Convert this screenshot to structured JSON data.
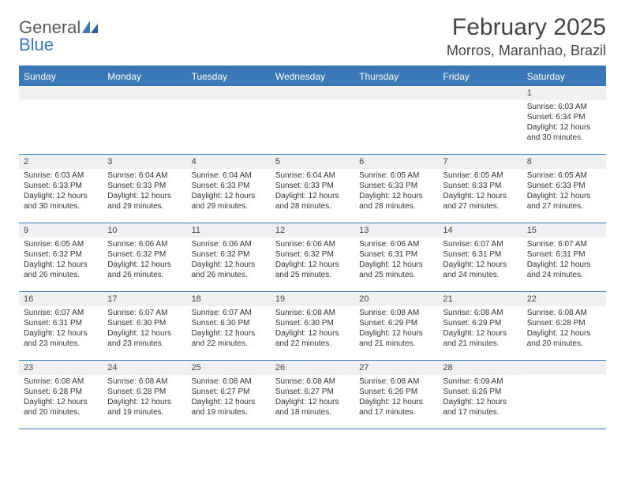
{
  "logo": {
    "word1": "General",
    "word2": "Blue"
  },
  "title": "February 2025",
  "location": "Morros, Maranhao, Brazil",
  "colors": {
    "accent": "#3b78b8",
    "daynum_bg": "#eef0f2",
    "text": "#333333",
    "header_text": "#444444"
  },
  "weekdays": [
    "Sunday",
    "Monday",
    "Tuesday",
    "Wednesday",
    "Thursday",
    "Friday",
    "Saturday"
  ],
  "weeks": [
    [
      {
        "n": "",
        "sr": "",
        "ss": "",
        "dl": ""
      },
      {
        "n": "",
        "sr": "",
        "ss": "",
        "dl": ""
      },
      {
        "n": "",
        "sr": "",
        "ss": "",
        "dl": ""
      },
      {
        "n": "",
        "sr": "",
        "ss": "",
        "dl": ""
      },
      {
        "n": "",
        "sr": "",
        "ss": "",
        "dl": ""
      },
      {
        "n": "",
        "sr": "",
        "ss": "",
        "dl": ""
      },
      {
        "n": "1",
        "sr": "Sunrise: 6:03 AM",
        "ss": "Sunset: 6:34 PM",
        "dl": "Daylight: 12 hours and 30 minutes."
      }
    ],
    [
      {
        "n": "2",
        "sr": "Sunrise: 6:03 AM",
        "ss": "Sunset: 6:33 PM",
        "dl": "Daylight: 12 hours and 30 minutes."
      },
      {
        "n": "3",
        "sr": "Sunrise: 6:04 AM",
        "ss": "Sunset: 6:33 PM",
        "dl": "Daylight: 12 hours and 29 minutes."
      },
      {
        "n": "4",
        "sr": "Sunrise: 6:04 AM",
        "ss": "Sunset: 6:33 PM",
        "dl": "Daylight: 12 hours and 29 minutes."
      },
      {
        "n": "5",
        "sr": "Sunrise: 6:04 AM",
        "ss": "Sunset: 6:33 PM",
        "dl": "Daylight: 12 hours and 28 minutes."
      },
      {
        "n": "6",
        "sr": "Sunrise: 6:05 AM",
        "ss": "Sunset: 6:33 PM",
        "dl": "Daylight: 12 hours and 28 minutes."
      },
      {
        "n": "7",
        "sr": "Sunrise: 6:05 AM",
        "ss": "Sunset: 6:33 PM",
        "dl": "Daylight: 12 hours and 27 minutes."
      },
      {
        "n": "8",
        "sr": "Sunrise: 6:05 AM",
        "ss": "Sunset: 6:33 PM",
        "dl": "Daylight: 12 hours and 27 minutes."
      }
    ],
    [
      {
        "n": "9",
        "sr": "Sunrise: 6:05 AM",
        "ss": "Sunset: 6:32 PM",
        "dl": "Daylight: 12 hours and 26 minutes."
      },
      {
        "n": "10",
        "sr": "Sunrise: 6:06 AM",
        "ss": "Sunset: 6:32 PM",
        "dl": "Daylight: 12 hours and 26 minutes."
      },
      {
        "n": "11",
        "sr": "Sunrise: 6:06 AM",
        "ss": "Sunset: 6:32 PM",
        "dl": "Daylight: 12 hours and 26 minutes."
      },
      {
        "n": "12",
        "sr": "Sunrise: 6:06 AM",
        "ss": "Sunset: 6:32 PM",
        "dl": "Daylight: 12 hours and 25 minutes."
      },
      {
        "n": "13",
        "sr": "Sunrise: 6:06 AM",
        "ss": "Sunset: 6:31 PM",
        "dl": "Daylight: 12 hours and 25 minutes."
      },
      {
        "n": "14",
        "sr": "Sunrise: 6:07 AM",
        "ss": "Sunset: 6:31 PM",
        "dl": "Daylight: 12 hours and 24 minutes."
      },
      {
        "n": "15",
        "sr": "Sunrise: 6:07 AM",
        "ss": "Sunset: 6:31 PM",
        "dl": "Daylight: 12 hours and 24 minutes."
      }
    ],
    [
      {
        "n": "16",
        "sr": "Sunrise: 6:07 AM",
        "ss": "Sunset: 6:31 PM",
        "dl": "Daylight: 12 hours and 23 minutes."
      },
      {
        "n": "17",
        "sr": "Sunrise: 6:07 AM",
        "ss": "Sunset: 6:30 PM",
        "dl": "Daylight: 12 hours and 23 minutes."
      },
      {
        "n": "18",
        "sr": "Sunrise: 6:07 AM",
        "ss": "Sunset: 6:30 PM",
        "dl": "Daylight: 12 hours and 22 minutes."
      },
      {
        "n": "19",
        "sr": "Sunrise: 6:08 AM",
        "ss": "Sunset: 6:30 PM",
        "dl": "Daylight: 12 hours and 22 minutes."
      },
      {
        "n": "20",
        "sr": "Sunrise: 6:08 AM",
        "ss": "Sunset: 6:29 PM",
        "dl": "Daylight: 12 hours and 21 minutes."
      },
      {
        "n": "21",
        "sr": "Sunrise: 6:08 AM",
        "ss": "Sunset: 6:29 PM",
        "dl": "Daylight: 12 hours and 21 minutes."
      },
      {
        "n": "22",
        "sr": "Sunrise: 6:08 AM",
        "ss": "Sunset: 6:28 PM",
        "dl": "Daylight: 12 hours and 20 minutes."
      }
    ],
    [
      {
        "n": "23",
        "sr": "Sunrise: 6:08 AM",
        "ss": "Sunset: 6:28 PM",
        "dl": "Daylight: 12 hours and 20 minutes."
      },
      {
        "n": "24",
        "sr": "Sunrise: 6:08 AM",
        "ss": "Sunset: 6:28 PM",
        "dl": "Daylight: 12 hours and 19 minutes."
      },
      {
        "n": "25",
        "sr": "Sunrise: 6:08 AM",
        "ss": "Sunset: 6:27 PM",
        "dl": "Daylight: 12 hours and 19 minutes."
      },
      {
        "n": "26",
        "sr": "Sunrise: 6:08 AM",
        "ss": "Sunset: 6:27 PM",
        "dl": "Daylight: 12 hours and 18 minutes."
      },
      {
        "n": "27",
        "sr": "Sunrise: 6:08 AM",
        "ss": "Sunset: 6:26 PM",
        "dl": "Daylight: 12 hours and 17 minutes."
      },
      {
        "n": "28",
        "sr": "Sunrise: 6:09 AM",
        "ss": "Sunset: 6:26 PM",
        "dl": "Daylight: 12 hours and 17 minutes."
      },
      {
        "n": "",
        "sr": "",
        "ss": "",
        "dl": ""
      }
    ]
  ]
}
